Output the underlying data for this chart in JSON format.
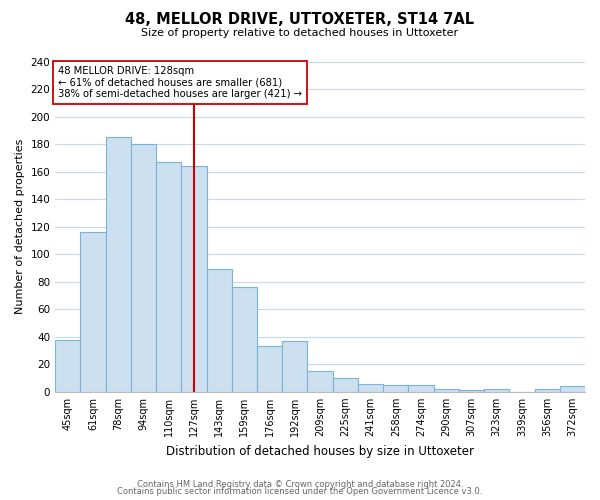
{
  "title": "48, MELLOR DRIVE, UTTOXETER, ST14 7AL",
  "subtitle": "Size of property relative to detached houses in Uttoxeter",
  "xlabel": "Distribution of detached houses by size in Uttoxeter",
  "ylabel": "Number of detached properties",
  "bar_labels": [
    "45sqm",
    "61sqm",
    "78sqm",
    "94sqm",
    "110sqm",
    "127sqm",
    "143sqm",
    "159sqm",
    "176sqm",
    "192sqm",
    "209sqm",
    "225sqm",
    "241sqm",
    "258sqm",
    "274sqm",
    "290sqm",
    "307sqm",
    "323sqm",
    "339sqm",
    "356sqm",
    "372sqm"
  ],
  "bar_heights": [
    38,
    116,
    185,
    180,
    167,
    164,
    89,
    76,
    33,
    37,
    15,
    10,
    6,
    5,
    5,
    2,
    1,
    2,
    0,
    2,
    4
  ],
  "bar_color": "#cce0f0",
  "bar_edge_color": "#7ab4d8",
  "marker_index": 5,
  "marker_line_color": "#cc0000",
  "annotation_text": "48 MELLOR DRIVE: 128sqm\n← 61% of detached houses are smaller (681)\n38% of semi-detached houses are larger (421) →",
  "annotation_box_edge": "#cc0000",
  "ylim": [
    0,
    240
  ],
  "yticks": [
    0,
    20,
    40,
    60,
    80,
    100,
    120,
    140,
    160,
    180,
    200,
    220,
    240
  ],
  "footer_line1": "Contains HM Land Registry data © Crown copyright and database right 2024.",
  "footer_line2": "Contains public sector information licensed under the Open Government Licence v3.0.",
  "background_color": "#ffffff",
  "grid_color": "#c8d8e8"
}
